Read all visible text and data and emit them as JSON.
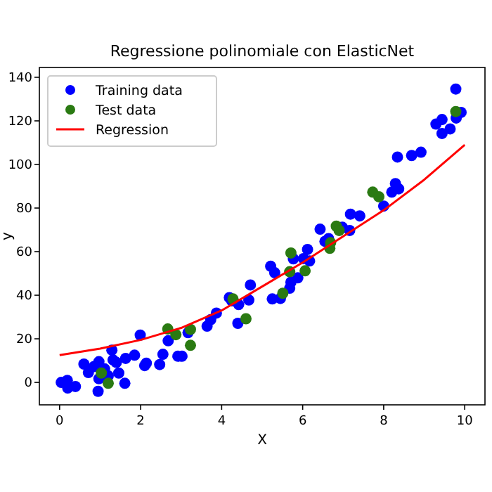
{
  "chart_data": {
    "type": "scatter",
    "title": "Regressione polinomiale con ElasticNet",
    "xlabel": "X",
    "ylabel": "y",
    "xlim": [
      -0.5,
      10.5
    ],
    "ylim": [
      -10.3,
      144.5
    ],
    "xticks": [
      0,
      2,
      4,
      6,
      8,
      10
    ],
    "yticks": [
      0,
      20,
      40,
      60,
      80,
      100,
      120,
      140
    ],
    "legend": "top left",
    "marker": "circle",
    "grid": false,
    "series": [
      {
        "name": "Training data",
        "color": "#0000ff",
        "x": [
          0.04,
          0.19,
          0.2,
          0.39,
          0.6,
          0.71,
          0.85,
          0.97,
          0.97,
          0.95,
          1.11,
          1.2,
          1.29,
          1.32,
          1.4,
          1.46,
          1.61,
          1.63,
          1.85,
          1.99,
          2.1,
          2.14,
          2.47,
          2.55,
          2.68,
          2.92,
          3.02,
          3.17,
          3.64,
          3.73,
          3.87,
          4.19,
          4.25,
          4.4,
          4.42,
          4.67,
          4.71,
          5.25,
          5.45,
          5.21,
          5.31,
          5.68,
          5.71,
          5.77,
          5.88,
          6.02,
          6.12,
          6.17,
          6.43,
          6.55,
          6.64,
          6.98,
          7.16,
          7.18,
          7.41,
          8.0,
          8.2,
          8.29,
          8.37,
          8.34,
          8.69,
          8.92,
          9.29,
          9.44,
          9.44,
          9.64,
          9.78,
          9.79,
          9.91
        ],
        "values": [
          0,
          0.9,
          -2.6,
          -1.9,
          8.4,
          4.5,
          7.3,
          9.5,
          1.7,
          -4.1,
          6.2,
          3,
          14.8,
          10.3,
          9.2,
          4.3,
          -0.4,
          11,
          12.5,
          21.7,
          7.7,
          8.8,
          8.2,
          12.9,
          19.1,
          12,
          12,
          22.8,
          25.8,
          28.8,
          31.8,
          38.9,
          37.4,
          27.1,
          35.7,
          37.8,
          44.7,
          38.3,
          38.5,
          53.3,
          50.3,
          43.2,
          46,
          56.7,
          48,
          56.8,
          61,
          55.7,
          70.3,
          64.7,
          66,
          71.2,
          69.7,
          77.2,
          76.4,
          80.9,
          87.3,
          91.2,
          88.8,
          103.4,
          104.1,
          105.6,
          118.5,
          120.6,
          114.2,
          116.3,
          134.6,
          121.3,
          123.9
        ]
      },
      {
        "name": "Test data",
        "color": "#2a7a12",
        "x": [
          1.03,
          1.2,
          2.67,
          2.87,
          3.23,
          3.23,
          4.28,
          4.6,
          5.51,
          5.68,
          5.71,
          6.06,
          6.67,
          6.69,
          6.83,
          6.9,
          7.73,
          7.88,
          9.78
        ],
        "values": [
          4.3,
          -0.4,
          24.5,
          21.9,
          24.3,
          17,
          38.3,
          29.2,
          40.9,
          50.8,
          59.4,
          51.2,
          61.5,
          64.1,
          71.7,
          69.7,
          87.3,
          85.2,
          124.3
        ]
      },
      {
        "name": "Regression",
        "type": "line",
        "color": "#ff0000",
        "marker": "none",
        "x": [
          0,
          1,
          2,
          3,
          4,
          5,
          6,
          7,
          8,
          9,
          10
        ],
        "values": [
          12.5,
          15.5,
          19.5,
          25,
          33,
          44,
          55,
          67,
          79,
          93,
          109
        ]
      }
    ]
  }
}
